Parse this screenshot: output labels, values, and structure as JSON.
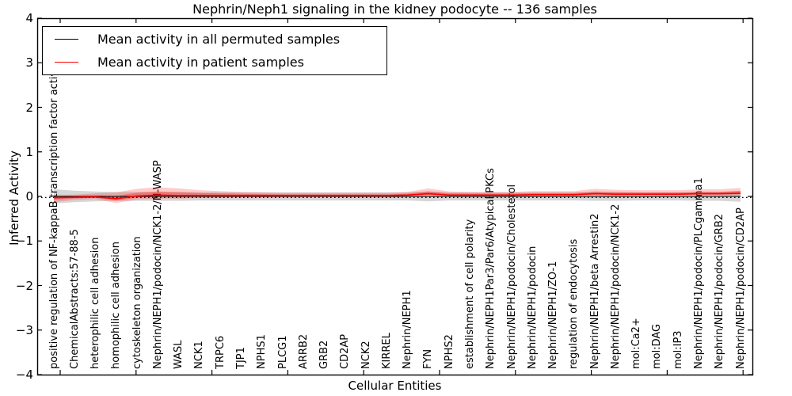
{
  "title": "Nephrin/Neph1 signaling in the kidney podocyte -- 136 samples",
  "axes": {
    "xlabel": "Cellular Entities",
    "ylabel": "Inferred Activity",
    "ytick_labels": [
      "4",
      "3",
      "2",
      "1",
      "0",
      "−1",
      "−2",
      "−3",
      "−4"
    ]
  },
  "legend": {
    "entries": [
      {
        "label": "Mean activity in all permuted samples",
        "color": "#000000"
      },
      {
        "label": "Mean activity in patient samples",
        "color": "#ff0000"
      }
    ]
  },
  "chart_data": {
    "type": "line",
    "title": "Nephrin/Neph1 signaling in the kidney podocyte -- 136 samples",
    "xlabel": "Cellular Entities",
    "ylabel": "Inferred Activity",
    "ylim": [
      -4,
      4
    ],
    "grid": false,
    "legend_position": "upper left",
    "zero_reference_line": {
      "style": "dotted",
      "color": "#000000",
      "y": 0
    },
    "categories": [
      "positive regulation of NF-kappaB transcription factor activity",
      "ChemicalAbstracts:57-88-5",
      "heterophilic cell adhesion",
      "homophilic cell adhesion",
      "cytoskeleton organization",
      "Nephrin/NEPH1/podocin/NCK1-2/N-WASP",
      "WASL",
      "NCK1",
      "TRPC6",
      "TJP1",
      "NPHS1",
      "PLCG1",
      "ARRB2",
      "GRB2",
      "CD2AP",
      "NCK2",
      "KIRREL",
      "Nephrin/NEPH1",
      "FYN",
      "NPHS2",
      "establishment of cell polarity",
      "Nephrin/NEPH1Par3/Par6/Atypical PKCs",
      "Nephrin/NEPH1/podocin/Cholesterol",
      "Nephrin/NEPH1/podocin",
      "Nephrin/NEPH1/ZO-1",
      "regulation of endocytosis",
      "Nephrin/NEPH1/beta Arrestin2",
      "Nephrin/NEPH1/podocin/NCK1-2",
      "mol:Ca2+",
      "mol:DAG",
      "mol:IP3",
      "Nephrin/NEPH1/podocin/PLCgamma1",
      "Nephrin/NEPH1/podocin/GRB2",
      "Nephrin/NEPH1/podocin/CD2AP"
    ],
    "series": [
      {
        "name": "Mean activity in all permuted samples",
        "color": "#000000",
        "values": [
          0,
          0,
          0,
          0,
          0,
          0,
          0,
          0,
          0,
          0,
          0,
          0,
          0,
          0,
          0,
          0,
          0,
          0,
          0,
          0,
          0,
          0,
          0,
          0,
          0,
          0,
          0,
          0,
          0,
          0,
          0,
          0,
          0,
          0
        ],
        "band_halfwidth": [
          0.16,
          0.13,
          0.11,
          0.1,
          0.1,
          0.1,
          0.1,
          0.09,
          0.09,
          0.09,
          0.09,
          0.09,
          0.09,
          0.09,
          0.09,
          0.09,
          0.09,
          0.09,
          0.11,
          0.09,
          0.09,
          0.09,
          0.09,
          0.09,
          0.09,
          0.09,
          0.1,
          0.1,
          0.09,
          0.09,
          0.09,
          0.1,
          0.1,
          0.12
        ],
        "band_color": "rgba(0,0,0,0.16)"
      },
      {
        "name": "Mean activity in patient samples",
        "color": "#ff0000",
        "values": [
          -0.03,
          -0.02,
          -0.01,
          -0.05,
          0.01,
          0.03,
          0.02,
          0.02,
          0.02,
          0.02,
          0.02,
          0.02,
          0.02,
          0.02,
          0.02,
          0.02,
          0.02,
          0.03,
          0.06,
          0.03,
          0.03,
          0.03,
          0.03,
          0.04,
          0.04,
          0.04,
          0.06,
          0.05,
          0.05,
          0.05,
          0.05,
          0.06,
          0.06,
          0.07
        ],
        "band_upper": [
          0.06,
          0.06,
          0.08,
          0.14,
          0.16,
          0.18,
          0.16,
          0.12,
          0.1,
          0.08,
          0.07,
          0.06,
          0.06,
          0.06,
          0.06,
          0.06,
          0.06,
          0.07,
          0.12,
          0.08,
          0.07,
          0.07,
          0.07,
          0.08,
          0.08,
          0.08,
          0.11,
          0.1,
          0.09,
          0.09,
          0.09,
          0.1,
          0.1,
          0.12
        ],
        "band_lower": [
          0.1,
          0.06,
          0.05,
          0.1,
          0.08,
          0.08,
          0.07,
          0.05,
          0.05,
          0.04,
          0.04,
          0.03,
          0.03,
          0.03,
          0.03,
          0.03,
          0.03,
          0.03,
          0.05,
          0.03,
          0.03,
          0.03,
          0.03,
          0.03,
          0.03,
          0.03,
          0.04,
          0.04,
          0.03,
          0.03,
          0.03,
          0.04,
          0.04,
          0.05
        ],
        "band_color": "rgba(255,0,0,0.20)"
      }
    ]
  }
}
